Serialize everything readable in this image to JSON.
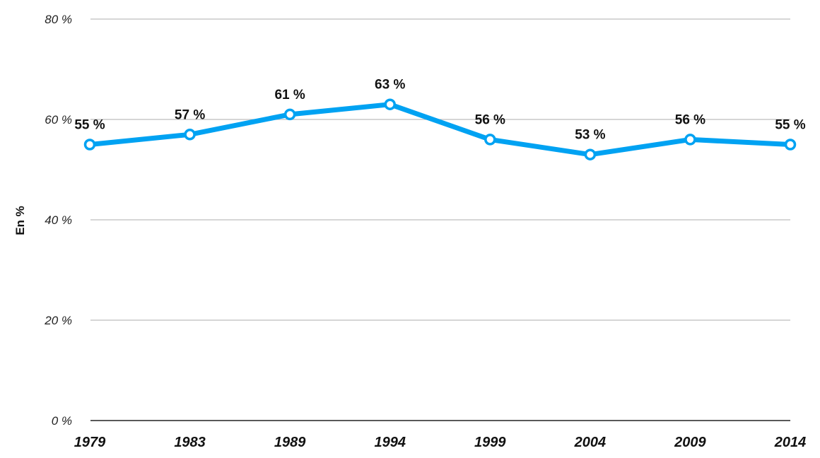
{
  "chart_data": {
    "type": "line",
    "categories": [
      "1979",
      "1983",
      "1989",
      "1994",
      "1999",
      "2004",
      "2009",
      "2014"
    ],
    "series": [
      {
        "values": [
          55,
          57,
          61,
          63,
          56,
          53,
          56,
          55
        ],
        "data_labels": [
          "55 %",
          "57 %",
          "61 %",
          "63 %",
          "56 %",
          "53 %",
          "56 %",
          "55 %"
        ]
      }
    ],
    "title": "",
    "xlabel": "",
    "ylabel": "En %",
    "ylim": [
      0,
      80
    ],
    "yticks": [
      0,
      20,
      40,
      60,
      80
    ],
    "ytick_labels": [
      "0 %",
      "20 %",
      "40 %",
      "60 %",
      "80 %"
    ],
    "grid": true,
    "legend": "none",
    "line_color": "#00a2f2",
    "marker_fill": "#ffffff"
  }
}
